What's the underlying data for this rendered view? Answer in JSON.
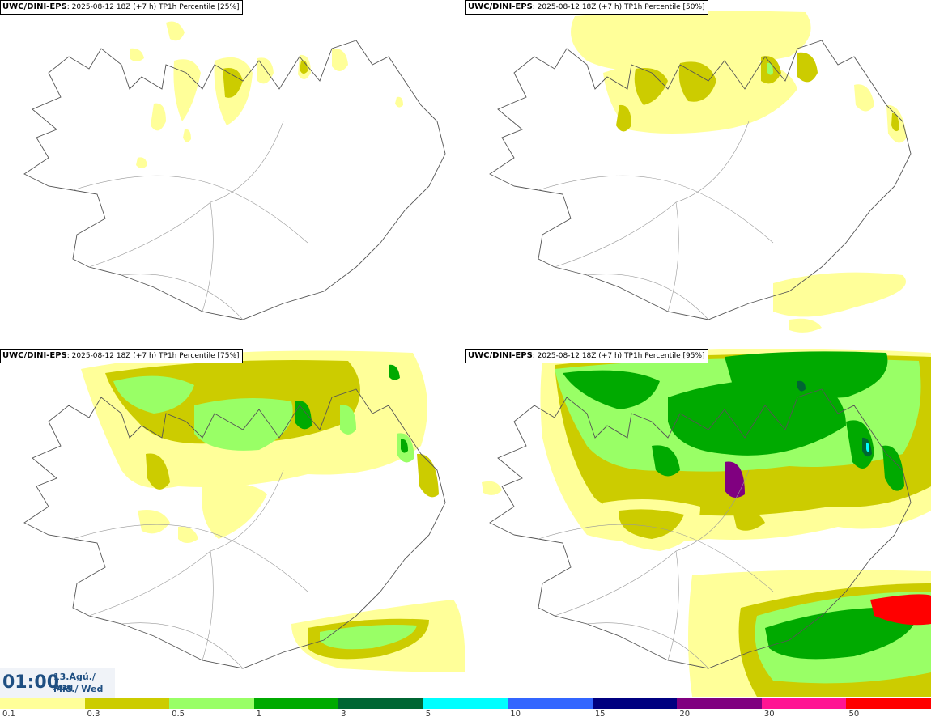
{
  "panels": [
    {
      "model": "UWC/DINI-EPS",
      "run": ": 2025-08-12 18Z (+7 h)",
      "product": " TP1h Percentile [25%]"
    },
    {
      "model": "UWC/DINI-EPS",
      "run": ": 2025-08-12 18Z (+7 h)",
      "product": " TP1h Percentile [50%]"
    },
    {
      "model": "UWC/DINI-EPS",
      "run": ": 2025-08-12 18Z (+7 h)",
      "product": " TP1h Percentile [75%]"
    },
    {
      "model": "UWC/DINI-EPS",
      "run": ": 2025-08-12 18Z (+7 h)",
      "product": " TP1h Percentile [95%]"
    }
  ],
  "valid_time": {
    "time": "01:00",
    "date_line1": "13.Ágú./ Aug",
    "date_line2": "Mið./ Wed"
  },
  "legend": {
    "colors": [
      "#ffff99",
      "#cccc00",
      "#99ff66",
      "#00aa00",
      "#006633",
      "#00ffff",
      "#3366ff",
      "#000080",
      "#800080",
      "#ff1493",
      "#ff0000"
    ],
    "labels": [
      "0.1",
      "0.3",
      "0.5",
      "1",
      "3",
      "5",
      "10",
      "15",
      "20",
      "30",
      "50"
    ]
  },
  "palette": {
    "map_outline": "#555555",
    "roads": "#999999"
  }
}
